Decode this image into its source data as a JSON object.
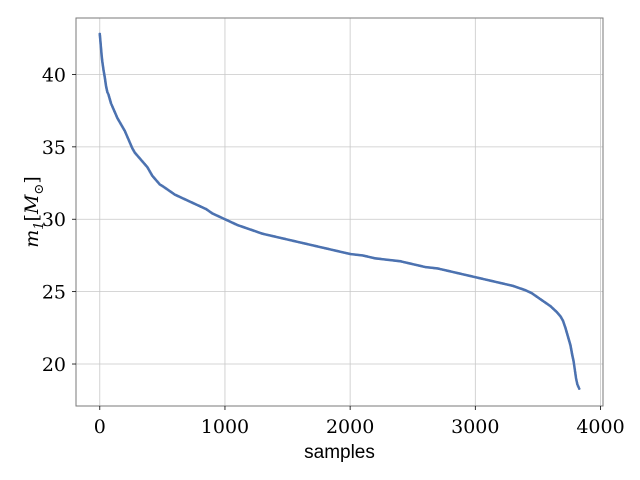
{
  "chart_data": {
    "type": "scatter",
    "xlabel": "samples",
    "ylabel": "m_1[M_⊙]",
    "xlim": [
      -190,
      4020
    ],
    "ylim": [
      17.1,
      43.9
    ],
    "xticks": [
      0,
      1000,
      2000,
      3000,
      4000
    ],
    "xtick_labels": [
      "0",
      "1000",
      "2000",
      "3000",
      "4000"
    ],
    "yticks": [
      20,
      25,
      30,
      35,
      40
    ],
    "ytick_labels": [
      "20",
      "25",
      "30",
      "35",
      "40"
    ],
    "grid": true,
    "marker_color": "#4c72b0",
    "series": [
      {
        "x": [
          0,
          5,
          10,
          15,
          20,
          30,
          40,
          50,
          60,
          70,
          80,
          90,
          100,
          120,
          140,
          160,
          180,
          200,
          220,
          240,
          260,
          280,
          300,
          320,
          340,
          360,
          380,
          400,
          420,
          440,
          460,
          480,
          500,
          550,
          600,
          650,
          700,
          750,
          800,
          850,
          900,
          950,
          1000,
          1100,
          1200,
          1300,
          1400,
          1500,
          1600,
          1700,
          1800,
          1900,
          2000,
          2100,
          2200,
          2300,
          2400,
          2500,
          2600,
          2700,
          2800,
          2900,
          3000,
          3100,
          3200,
          3300,
          3400,
          3450,
          3500,
          3550,
          3600,
          3650,
          3680,
          3700,
          3720,
          3740,
          3760,
          3775,
          3785,
          3790,
          3795,
          3800,
          3805,
          3810,
          3815,
          3820,
          3825,
          3830
        ],
        "y": [
          42.8,
          42.3,
          41.8,
          41.3,
          40.9,
          40.3,
          39.8,
          39.2,
          38.8,
          38.6,
          38.3,
          38.0,
          37.8,
          37.4,
          37.0,
          36.7,
          36.4,
          36.1,
          35.7,
          35.3,
          34.9,
          34.6,
          34.4,
          34.2,
          34.0,
          33.8,
          33.6,
          33.3,
          33.0,
          32.8,
          32.6,
          32.4,
          32.3,
          32.0,
          31.7,
          31.5,
          31.3,
          31.1,
          30.9,
          30.7,
          30.4,
          30.2,
          30.0,
          29.6,
          29.3,
          29.0,
          28.8,
          28.6,
          28.4,
          28.2,
          28.0,
          27.8,
          27.6,
          27.5,
          27.3,
          27.2,
          27.1,
          26.9,
          26.7,
          26.6,
          26.4,
          26.2,
          26.0,
          25.8,
          25.6,
          25.4,
          25.1,
          24.9,
          24.6,
          24.3,
          24.0,
          23.6,
          23.3,
          23.0,
          22.5,
          21.9,
          21.3,
          20.6,
          20.2,
          19.9,
          19.6,
          19.3,
          19.0,
          18.8,
          18.6,
          18.5,
          18.4,
          18.3
        ]
      }
    ]
  }
}
